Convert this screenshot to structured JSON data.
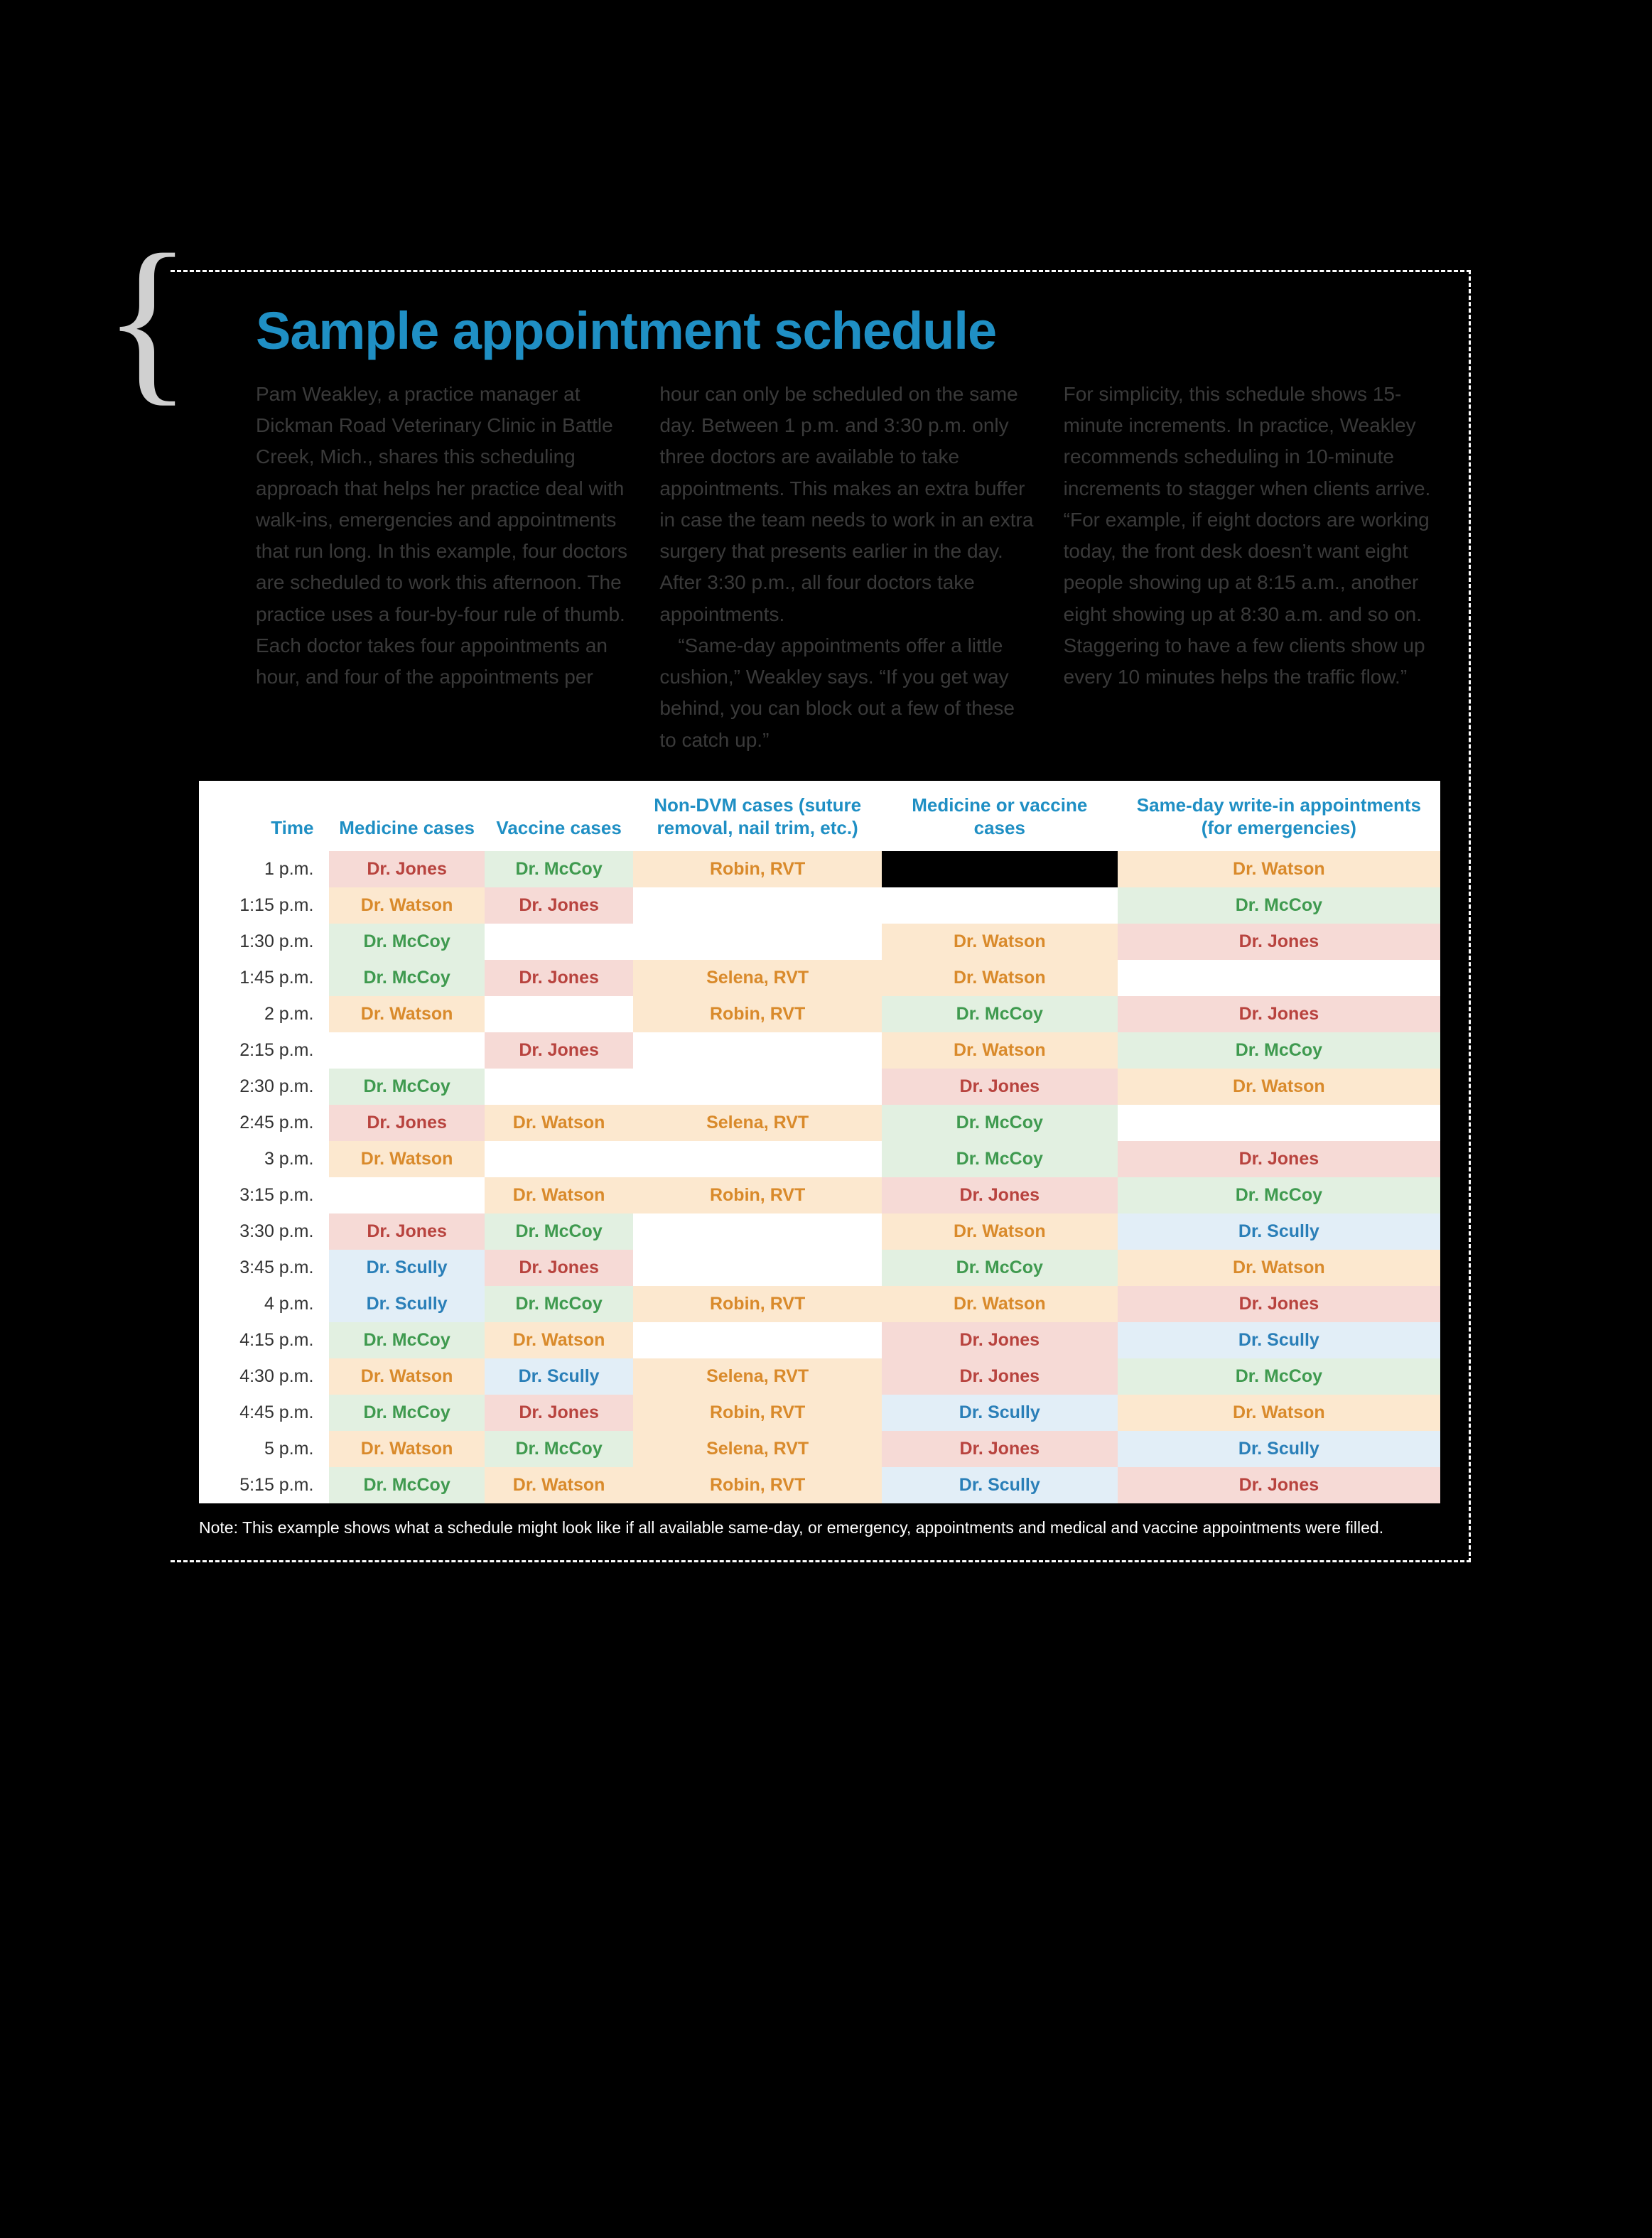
{
  "title": "Sample appointment schedule",
  "intro_columns": [
    "Pam Weakley, a practice manager at Dickman Road Veterinary Clinic in Battle Creek, Mich., shares this scheduling approach that helps her practice deal with walk-ins, emergencies and appointments that run long. In this example, four doctors are scheduled to work this afternoon. The practice uses a four-by-four rule of thumb. Each doctor takes four appointments an hour, and four of the appointments per",
    "hour can only be scheduled on the same day. Between 1 p.m. and 3:30 p.m. only three doctors are available to take appointments. This makes an extra buffer in case the team needs to work in an extra surgery that presents earlier in the day. After 3:30 p.m., all four doctors take appointments.|“Same-day appointments offer a little cushion,” Weakley says. “If you get way behind, you can block out a few of these to catch up.”",
    "For simplicity, this schedule shows 15-minute increments. In practice, Weakley recommends scheduling in 10-minute increments to stagger when clients arrive. “For example, if eight doctors are working today, the front desk doesn’t want eight people showing up at 8:15 a.m., another eight showing up at 8:30 a.m. and so on. Staggering to have a few clients show up every 10 minutes helps the traffic flow.”"
  ],
  "table": {
    "headers": [
      "Time",
      "Medicine cases",
      "Vaccine cases",
      "Non-DVM cases (suture removal, nail trim, etc.)",
      "Medicine or vaccine cases",
      "Same-day write-in appointments (for emergencies)"
    ],
    "doctors": {
      "jones": {
        "label": "Dr. Jones",
        "text": "#b8433e",
        "bg": "#f6dad6"
      },
      "watson": {
        "label": "Dr. Watson",
        "text": "#d98a2b",
        "bg": "#fce8cf"
      },
      "mccoy": {
        "label": "Dr. McCoy",
        "text": "#3f9a4f",
        "bg": "#e2f0e1"
      },
      "scully": {
        "label": "Dr. Scully",
        "text": "#2a7fb8",
        "bg": "#e2eef7"
      },
      "robin": {
        "label": "Robin, RVT",
        "text": "#d98a2b",
        "bg": "#fce8cf"
      },
      "selena": {
        "label": "Selena, RVT",
        "text": "#d98a2b",
        "bg": "#fce8cf"
      },
      "blank": {
        "label": "",
        "text": "#000000",
        "bg": "#ffffff"
      },
      "black": {
        "label": "",
        "text": "#000000",
        "bg": "#000000"
      }
    },
    "rows": [
      {
        "time": "1 p.m.",
        "cells": [
          "jones",
          "mccoy",
          "robin",
          "black",
          "watson"
        ]
      },
      {
        "time": "1:15 p.m.",
        "cells": [
          "watson",
          "jones",
          "blank",
          "blank",
          "mccoy"
        ]
      },
      {
        "time": "1:30 p.m.",
        "cells": [
          "mccoy",
          "blank",
          "blank",
          "watson",
          "jones"
        ]
      },
      {
        "time": "1:45 p.m.",
        "cells": [
          "mccoy",
          "jones",
          "selena",
          "watson",
          "blank"
        ]
      },
      {
        "time": "2 p.m.",
        "cells": [
          "watson",
          "blank",
          "robin",
          "mccoy",
          "jones"
        ]
      },
      {
        "time": "2:15 p.m.",
        "cells": [
          "blank",
          "jones",
          "blank",
          "watson",
          "mccoy"
        ]
      },
      {
        "time": "2:30 p.m.",
        "cells": [
          "mccoy",
          "blank",
          "blank",
          "jones",
          "watson"
        ]
      },
      {
        "time": "2:45 p.m.",
        "cells": [
          "jones",
          "watson",
          "selena",
          "mccoy",
          "blank"
        ]
      },
      {
        "time": "3 p.m.",
        "cells": [
          "watson",
          "blank",
          "blank",
          "mccoy",
          "jones"
        ]
      },
      {
        "time": "3:15 p.m.",
        "cells": [
          "blank",
          "watson",
          "robin",
          "jones",
          "mccoy"
        ]
      },
      {
        "time": "3:30 p.m.",
        "cells": [
          "jones",
          "mccoy",
          "blank",
          "watson",
          "scully"
        ]
      },
      {
        "time": "3:45 p.m.",
        "cells": [
          "scully",
          "jones",
          "blank",
          "mccoy",
          "watson"
        ]
      },
      {
        "time": "4 p.m.",
        "cells": [
          "scully",
          "mccoy",
          "robin",
          "watson",
          "jones"
        ]
      },
      {
        "time": "4:15 p.m.",
        "cells": [
          "mccoy",
          "watson",
          "blank",
          "jones",
          "scully"
        ]
      },
      {
        "time": "4:30 p.m.",
        "cells": [
          "watson",
          "scully",
          "selena",
          "jones",
          "mccoy"
        ]
      },
      {
        "time": "4:45 p.m.",
        "cells": [
          "mccoy",
          "jones",
          "robin",
          "scully",
          "watson"
        ]
      },
      {
        "time": "5 p.m.",
        "cells": [
          "watson",
          "mccoy",
          "selena",
          "jones",
          "scully"
        ]
      },
      {
        "time": "5:15 p.m.",
        "cells": [
          "mccoy",
          "watson",
          "robin",
          "scully",
          "jones"
        ]
      }
    ]
  },
  "note": "Note: This example shows what a schedule might look like if all available same-day, or emergency, appointments and medical and vaccine appointments were filled."
}
